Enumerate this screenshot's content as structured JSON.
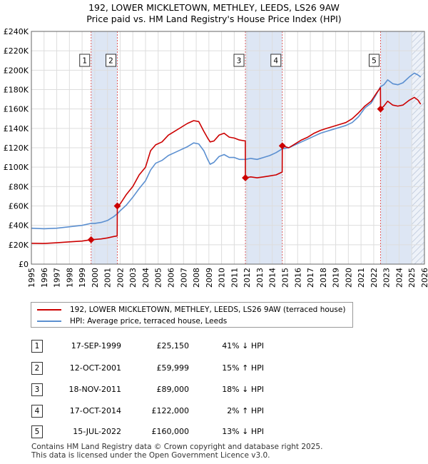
{
  "header": {
    "title_line1": "192, LOWER MICKLETOWN, METHLEY, LEEDS, LS26 9AW",
    "title_line2": "Price paid vs. HM Land Registry's House Price Index (HPI)"
  },
  "colors": {
    "price_line": "#cc0000",
    "hpi_line": "#5b8fd0",
    "grid": "#dddddd",
    "band": "#dde6f4",
    "marker_line": "#e06060"
  },
  "chart_data": {
    "type": "line",
    "title": "Price paid vs. HM Land Registry's House Price Index (HPI)",
    "xlabel": "",
    "ylabel": "",
    "xlim": [
      1995,
      2026
    ],
    "ylim": [
      0,
      240000
    ],
    "x_ticks": [
      "1995",
      "1996",
      "1997",
      "1998",
      "1999",
      "2000",
      "2001",
      "2002",
      "2003",
      "2004",
      "2005",
      "2006",
      "2007",
      "2008",
      "2009",
      "2010",
      "2011",
      "2012",
      "2013",
      "2014",
      "2015",
      "2016",
      "2017",
      "2018",
      "2019",
      "2020",
      "2021",
      "2022",
      "2023",
      "2024",
      "2025",
      "2026"
    ],
    "y_ticks": [
      "£0",
      "£20K",
      "£40K",
      "£60K",
      "£80K",
      "£100K",
      "£120K",
      "£140K",
      "£160K",
      "£180K",
      "£200K",
      "£220K",
      "£240K"
    ],
    "shaded_ranges": [
      [
        1999.71,
        2001.78
      ],
      [
        2011.88,
        2014.79
      ],
      [
        2022.54,
        2026
      ]
    ],
    "hatched_from": 2025.0,
    "series": [
      {
        "name": "192, LOWER MICKLETOWN, METHLEY, LEEDS, LS26 9AW (terraced house)",
        "color": "#cc0000",
        "points": [
          [
            1995,
            21500
          ],
          [
            1996,
            21300
          ],
          [
            1997,
            22000
          ],
          [
            1998,
            23000
          ],
          [
            1999,
            23800
          ],
          [
            1999.71,
            25150
          ],
          [
            2000,
            25500
          ],
          [
            2000.5,
            26000
          ],
          [
            2001,
            27000
          ],
          [
            2001.5,
            28500
          ],
          [
            2001.77,
            29000
          ],
          [
            2001.78,
            59999
          ],
          [
            2002,
            62000
          ],
          [
            2002.5,
            72000
          ],
          [
            2003,
            80000
          ],
          [
            2003.5,
            92000
          ],
          [
            2004,
            100000
          ],
          [
            2004.4,
            117000
          ],
          [
            2004.8,
            123000
          ],
          [
            2005.3,
            126000
          ],
          [
            2005.8,
            133000
          ],
          [
            2006.3,
            137000
          ],
          [
            2006.8,
            141000
          ],
          [
            2007.3,
            145000
          ],
          [
            2007.8,
            148000
          ],
          [
            2008.2,
            147000
          ],
          [
            2008.6,
            137000
          ],
          [
            2008.9,
            130000
          ],
          [
            2009.1,
            126000
          ],
          [
            2009.4,
            127000
          ],
          [
            2009.8,
            133000
          ],
          [
            2010.2,
            135000
          ],
          [
            2010.6,
            131000
          ],
          [
            2011,
            130000
          ],
          [
            2011.4,
            128000
          ],
          [
            2011.87,
            127000
          ],
          [
            2011.88,
            89000
          ],
          [
            2012.3,
            90000
          ],
          [
            2012.8,
            89000
          ],
          [
            2013.3,
            90000
          ],
          [
            2013.8,
            91000
          ],
          [
            2014.3,
            92000
          ],
          [
            2014.78,
            95000
          ],
          [
            2014.79,
            122000
          ],
          [
            2015.3,
            120000
          ],
          [
            2015.8,
            124000
          ],
          [
            2016.3,
            128000
          ],
          [
            2016.8,
            131000
          ],
          [
            2017.3,
            135000
          ],
          [
            2017.8,
            138000
          ],
          [
            2018.3,
            140000
          ],
          [
            2018.8,
            142000
          ],
          [
            2019.3,
            144000
          ],
          [
            2019.8,
            146000
          ],
          [
            2020.3,
            150000
          ],
          [
            2020.8,
            156000
          ],
          [
            2021.3,
            163000
          ],
          [
            2021.8,
            168000
          ],
          [
            2022.2,
            176000
          ],
          [
            2022.53,
            182000
          ],
          [
            2022.54,
            160000
          ],
          [
            2022.8,
            163000
          ],
          [
            2023.1,
            168000
          ],
          [
            2023.5,
            164000
          ],
          [
            2023.9,
            163000
          ],
          [
            2024.3,
            164000
          ],
          [
            2024.8,
            169000
          ],
          [
            2025.2,
            172000
          ],
          [
            2025.5,
            169000
          ],
          [
            2025.7,
            165000
          ]
        ]
      },
      {
        "name": "HPI: Average price, terraced house, Leeds",
        "color": "#5b8fd0",
        "points": [
          [
            1995,
            37000
          ],
          [
            1996,
            36500
          ],
          [
            1997,
            37000
          ],
          [
            1998,
            38500
          ],
          [
            1999,
            40000
          ],
          [
            1999.71,
            42000
          ],
          [
            2000,
            42000
          ],
          [
            2000.5,
            43000
          ],
          [
            2001,
            45000
          ],
          [
            2001.5,
            49000
          ],
          [
            2001.78,
            52000
          ],
          [
            2002,
            55000
          ],
          [
            2002.5,
            61000
          ],
          [
            2003,
            69000
          ],
          [
            2003.5,
            78000
          ],
          [
            2004,
            86000
          ],
          [
            2004.4,
            97000
          ],
          [
            2004.8,
            104000
          ],
          [
            2005.3,
            107000
          ],
          [
            2005.8,
            112000
          ],
          [
            2006.3,
            115000
          ],
          [
            2006.8,
            118000
          ],
          [
            2007.3,
            121000
          ],
          [
            2007.8,
            125000
          ],
          [
            2008.2,
            124000
          ],
          [
            2008.6,
            117000
          ],
          [
            2008.9,
            108000
          ],
          [
            2009.1,
            103000
          ],
          [
            2009.4,
            105000
          ],
          [
            2009.8,
            111000
          ],
          [
            2010.2,
            113000
          ],
          [
            2010.6,
            110000
          ],
          [
            2011,
            110000
          ],
          [
            2011.4,
            108000
          ],
          [
            2011.88,
            108000
          ],
          [
            2012.3,
            109000
          ],
          [
            2012.8,
            108000
          ],
          [
            2013.3,
            110000
          ],
          [
            2013.8,
            112000
          ],
          [
            2014.3,
            115000
          ],
          [
            2014.79,
            119000
          ],
          [
            2015.3,
            120000
          ],
          [
            2015.8,
            123000
          ],
          [
            2016.3,
            126000
          ],
          [
            2016.8,
            129000
          ],
          [
            2017.3,
            132000
          ],
          [
            2017.8,
            135000
          ],
          [
            2018.3,
            137000
          ],
          [
            2018.8,
            139000
          ],
          [
            2019.3,
            141000
          ],
          [
            2019.8,
            143000
          ],
          [
            2020.3,
            146000
          ],
          [
            2020.8,
            152000
          ],
          [
            2021.3,
            161000
          ],
          [
            2021.8,
            166000
          ],
          [
            2022.2,
            175000
          ],
          [
            2022.54,
            183000
          ],
          [
            2022.8,
            185000
          ],
          [
            2023.1,
            190000
          ],
          [
            2023.5,
            186000
          ],
          [
            2023.9,
            185000
          ],
          [
            2024.3,
            187000
          ],
          [
            2024.8,
            193000
          ],
          [
            2025.2,
            197000
          ],
          [
            2025.5,
            195000
          ],
          [
            2025.7,
            193000
          ]
        ]
      }
    ],
    "sales": [
      {
        "label": "1",
        "x": 1999.71,
        "price": 25150
      },
      {
        "label": "2",
        "x": 2001.78,
        "price": 59999
      },
      {
        "label": "3",
        "x": 2011.88,
        "price": 89000
      },
      {
        "label": "4",
        "x": 2014.79,
        "price": 122000
      },
      {
        "label": "5",
        "x": 2022.54,
        "price": 160000
      }
    ]
  },
  "legend": {
    "items": [
      {
        "label": "192, LOWER MICKLETOWN, METHLEY, LEEDS, LS26 9AW (terraced house)",
        "color": "#cc0000"
      },
      {
        "label": "HPI: Average price, terraced house, Leeds",
        "color": "#5b8fd0"
      }
    ]
  },
  "table": {
    "rows": [
      {
        "num": "1",
        "date": "17-SEP-1999",
        "price": "£25,150",
        "hpi": "41% ↓ HPI"
      },
      {
        "num": "2",
        "date": "12-OCT-2001",
        "price": "£59,999",
        "hpi": "15% ↑ HPI"
      },
      {
        "num": "3",
        "date": "18-NOV-2011",
        "price": "£89,000",
        "hpi": "18% ↓ HPI"
      },
      {
        "num": "4",
        "date": "17-OCT-2014",
        "price": "£122,000",
        "hpi": "2% ↑ HPI"
      },
      {
        "num": "5",
        "date": "15-JUL-2022",
        "price": "£160,000",
        "hpi": "13% ↓ HPI"
      }
    ]
  },
  "footer": {
    "line1": "Contains HM Land Registry data © Crown copyright and database right 2025.",
    "line2": "This data is licensed under the Open Government Licence v3.0."
  }
}
